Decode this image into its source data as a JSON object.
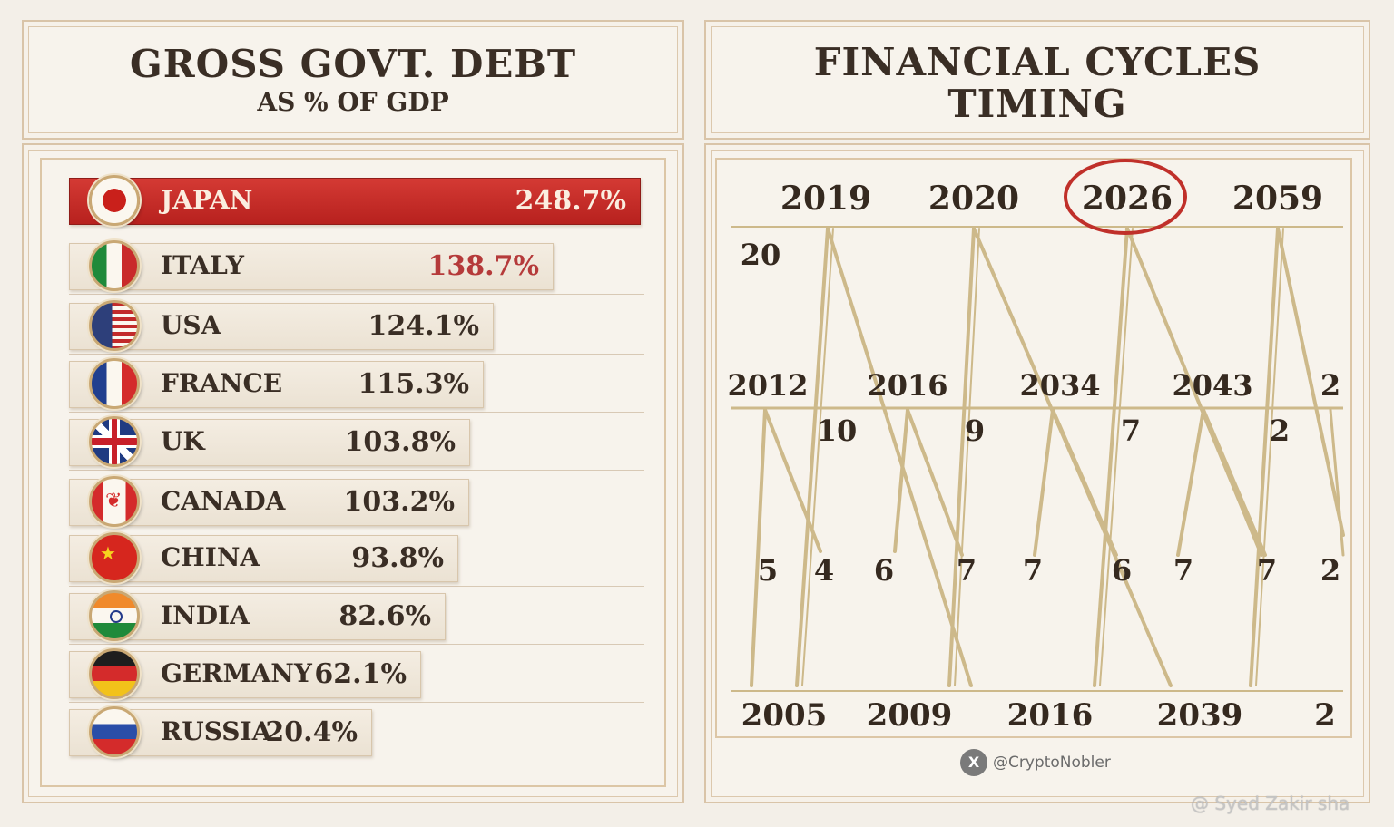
{
  "left_panel": {
    "title": "GROSS GOVT. DEBT",
    "subtitle": "AS % OF GDP"
  },
  "right_panel": {
    "title_line1": "FINANCIAL CYCLES",
    "title_line2": "TIMING"
  },
  "chart_data": [
    {
      "type": "bar",
      "title": "GROSS GOVT. DEBT",
      "subtitle": "AS % OF GDP",
      "categories": [
        "JAPAN",
        "ITALY",
        "USA",
        "FRANCE",
        "UK",
        "CANADA",
        "CHINA",
        "INDIA",
        "GERMANY",
        "RUSSIA"
      ],
      "values": [
        248.7,
        138.7,
        124.1,
        115.3,
        103.8,
        103.2,
        93.8,
        82.6,
        62.1,
        20.4
      ],
      "value_labels": [
        "248.7%",
        "138.7%",
        "124.1%",
        "115.3%",
        "103.8%",
        "103.2%",
        "93.8%",
        "82.6%",
        "62.1%",
        "20.4%"
      ],
      "highlight": "JAPAN",
      "highlight_color": "#c22a26",
      "accent_value_color": "#b53a3a",
      "orientation": "horizontal"
    },
    {
      "type": "line",
      "title": "FINANCIAL CYCLES TIMING",
      "top_years": [
        "2019",
        "2020",
        "2026",
        "2059"
      ],
      "highlighted_year": "2026",
      "highlight_color": "#c0302a",
      "middle_years": [
        "2012",
        "2016",
        "2034",
        "2043",
        "2"
      ],
      "bottom_years": [
        "2005",
        "2009",
        "2016",
        "2039",
        "2"
      ],
      "top_first_label": "20",
      "upper_intervals": [
        "10",
        "9",
        "7",
        "2"
      ],
      "lower_intervals": [
        "5",
        "4",
        "6",
        "7",
        "7",
        "6",
        "7",
        "7",
        "2"
      ],
      "line_color": "#cdb98a"
    }
  ],
  "credit": {
    "icon": "x-logo-icon",
    "handle": "@CryptoNobler"
  },
  "watermark": "@ Syed Zakir sha"
}
